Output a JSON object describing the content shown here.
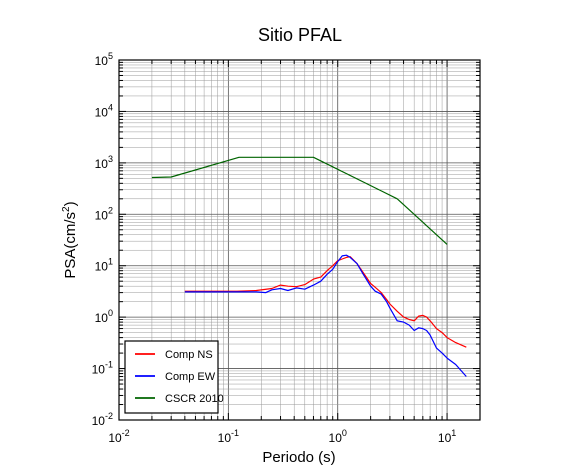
{
  "chart_data": {
    "type": "line",
    "title": "Sitio PFAL",
    "xlabel": "Periodo (s)",
    "ylabel_base": "PSA(cm/s",
    "ylabel_sup": "2",
    "ylabel_close": ")",
    "x_scale": "log",
    "y_scale": "log",
    "xlim": [
      0.01,
      20
    ],
    "ylim": [
      0.01,
      100000
    ],
    "grid": true,
    "legend_position": "bottom-left",
    "x_ticks": [
      {
        "base": "10",
        "exp": "-2",
        "value": 0.01
      },
      {
        "base": "10",
        "exp": "-1",
        "value": 0.1
      },
      {
        "base": "10",
        "exp": "0",
        "value": 1
      },
      {
        "base": "10",
        "exp": "1",
        "value": 10
      }
    ],
    "y_ticks": [
      {
        "base": "10",
        "exp": "-2",
        "value": 0.01
      },
      {
        "base": "10",
        "exp": "-1",
        "value": 0.1
      },
      {
        "base": "10",
        "exp": "0",
        "value": 1
      },
      {
        "base": "10",
        "exp": "1",
        "value": 10
      },
      {
        "base": "10",
        "exp": "2",
        "value": 100
      },
      {
        "base": "10",
        "exp": "3",
        "value": 1000
      },
      {
        "base": "10",
        "exp": "4",
        "value": 10000
      },
      {
        "base": "10",
        "exp": "5",
        "value": 100000
      }
    ],
    "series": [
      {
        "name": "Comp NS",
        "color": "#ff0000",
        "points": [
          [
            0.04,
            3.2
          ],
          [
            0.08,
            3.2
          ],
          [
            0.12,
            3.2
          ],
          [
            0.18,
            3.3
          ],
          [
            0.25,
            3.6
          ],
          [
            0.3,
            4.2
          ],
          [
            0.35,
            4.0
          ],
          [
            0.42,
            3.9
          ],
          [
            0.5,
            4.3
          ],
          [
            0.6,
            5.5
          ],
          [
            0.7,
            6.0
          ],
          [
            0.8,
            8.0
          ],
          [
            0.9,
            10.0
          ],
          [
            1.0,
            12.5
          ],
          [
            1.1,
            13.5
          ],
          [
            1.2,
            14.5
          ],
          [
            1.3,
            15.0
          ],
          [
            1.5,
            11.0
          ],
          [
            1.7,
            7.5
          ],
          [
            2.0,
            4.5
          ],
          [
            2.2,
            3.8
          ],
          [
            2.5,
            3.0
          ],
          [
            2.8,
            2.2
          ],
          [
            3.0,
            1.8
          ],
          [
            3.5,
            1.3
          ],
          [
            4.0,
            1.0
          ],
          [
            4.5,
            0.9
          ],
          [
            5.0,
            0.85
          ],
          [
            5.5,
            1.05
          ],
          [
            6.0,
            1.08
          ],
          [
            6.5,
            1.0
          ],
          [
            7.0,
            0.85
          ],
          [
            8.0,
            0.6
          ],
          [
            9.0,
            0.5
          ],
          [
            10.0,
            0.4
          ],
          [
            12.0,
            0.32
          ],
          [
            15.0,
            0.26
          ]
        ]
      },
      {
        "name": "Comp EW",
        "color": "#0000ff",
        "points": [
          [
            0.04,
            3.1
          ],
          [
            0.08,
            3.1
          ],
          [
            0.12,
            3.1
          ],
          [
            0.18,
            3.1
          ],
          [
            0.22,
            3.0
          ],
          [
            0.25,
            3.4
          ],
          [
            0.3,
            3.6
          ],
          [
            0.35,
            3.3
          ],
          [
            0.42,
            3.7
          ],
          [
            0.5,
            3.5
          ],
          [
            0.6,
            4.2
          ],
          [
            0.7,
            5.0
          ],
          [
            0.8,
            6.8
          ],
          [
            0.9,
            8.5
          ],
          [
            1.0,
            12.0
          ],
          [
            1.1,
            15.5
          ],
          [
            1.2,
            16.0
          ],
          [
            1.3,
            14.5
          ],
          [
            1.5,
            11.0
          ],
          [
            1.7,
            7.0
          ],
          [
            2.0,
            4.0
          ],
          [
            2.2,
            3.2
          ],
          [
            2.5,
            2.8
          ],
          [
            2.8,
            2.0
          ],
          [
            3.0,
            1.5
          ],
          [
            3.5,
            0.85
          ],
          [
            4.0,
            0.8
          ],
          [
            4.5,
            0.7
          ],
          [
            5.0,
            0.55
          ],
          [
            5.5,
            0.62
          ],
          [
            6.0,
            0.6
          ],
          [
            6.5,
            0.55
          ],
          [
            7.0,
            0.45
          ],
          [
            8.0,
            0.25
          ],
          [
            9.0,
            0.2
          ],
          [
            10.0,
            0.16
          ],
          [
            12.0,
            0.12
          ],
          [
            15.0,
            0.07
          ]
        ]
      },
      {
        "name": "CSCR 2010",
        "color": "#006400",
        "points": [
          [
            0.02,
            520
          ],
          [
            0.03,
            530
          ],
          [
            0.125,
            1280
          ],
          [
            0.6,
            1280
          ],
          [
            3.5,
            200
          ],
          [
            10.0,
            26
          ]
        ]
      }
    ]
  }
}
